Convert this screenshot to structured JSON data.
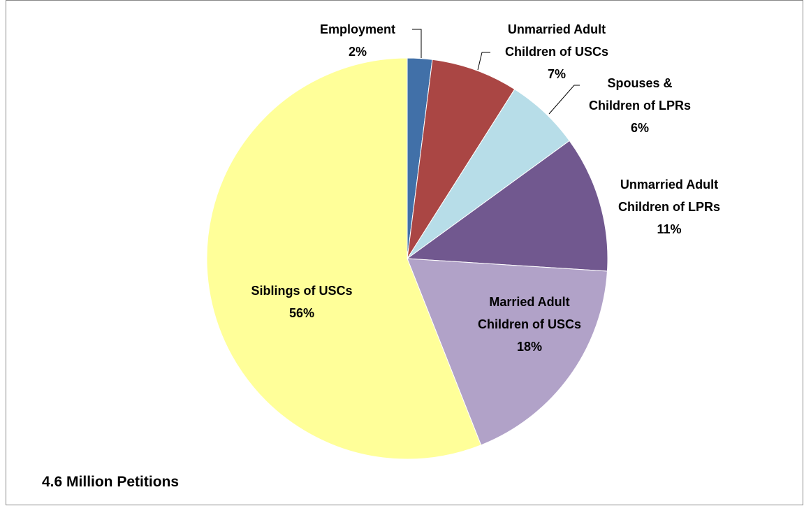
{
  "chart_data": {
    "type": "pie",
    "categories": [
      "Employment",
      "Unmarried Adult Children of USCs",
      "Spouses & Children of LPRs",
      "Unmarried Adult Children of LPRs",
      "Married Adult Children of USCs",
      "Siblings of USCs"
    ],
    "values": [
      2,
      7,
      6,
      11,
      18,
      56
    ],
    "value_labels": [
      "2%",
      "7%",
      "6%",
      "11%",
      "18%",
      "56%"
    ],
    "colors": [
      "#4170a8",
      "#aa4644",
      "#b7dde8",
      "#71588f",
      "#b1a2c8",
      "#ffff99"
    ],
    "note": "4.6 Million Petitions"
  }
}
